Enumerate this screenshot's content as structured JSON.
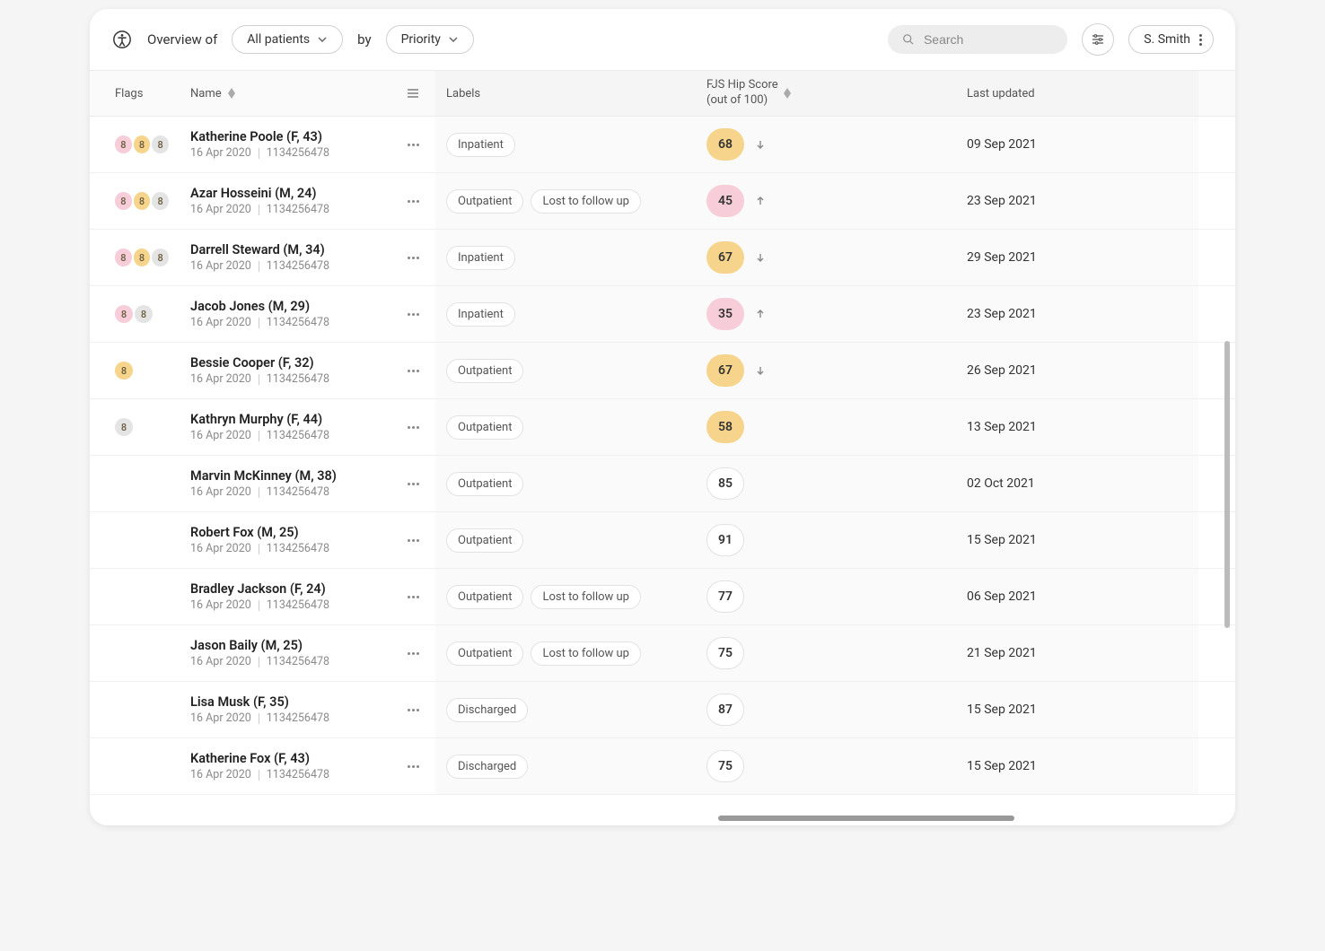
{
  "header": {
    "overview_label": "Overview of",
    "patients_select": "All patients",
    "by_label": "by",
    "priority_select": "Priority",
    "search_placeholder": "Search",
    "user_name": "S. Smith"
  },
  "columns": {
    "flags": "Flags",
    "name": "Name",
    "labels": "Labels",
    "score_line1": "FJS Hip Score",
    "score_line2": "(out of 100)",
    "updated": "Last updated"
  },
  "colors": {
    "flag_pink": "#f7cdd9",
    "flag_yellow": "#f6d48b",
    "flag_grey": "#e4e4e4",
    "score_yellow_bg": "#f6d48b",
    "score_pink_bg": "#f7cdd9",
    "score_neutral_bg": "#ffffff",
    "score_neutral_border": "#e2e2e2",
    "text_dark": "#333333"
  },
  "rows": [
    {
      "name": "Katherine Poole (F, 43)",
      "date": "16 Apr 2020",
      "id": "1134256478",
      "flags": [
        "pink",
        "yellow",
        "grey"
      ],
      "labels": [
        "Inpatient"
      ],
      "score": "68",
      "score_color": "yellow",
      "trend": "down",
      "updated": "09 Sep 2021"
    },
    {
      "name": "Azar Hosseini (M, 24)",
      "date": "16 Apr 2020",
      "id": "1134256478",
      "flags": [
        "pink",
        "yellow",
        "grey"
      ],
      "labels": [
        "Outpatient",
        "Lost to follow up"
      ],
      "score": "45",
      "score_color": "pink",
      "trend": "up",
      "updated": "23 Sep 2021"
    },
    {
      "name": "Darrell Steward (M, 34)",
      "date": "16 Apr 2020",
      "id": "1134256478",
      "flags": [
        "pink",
        "yellow",
        "grey"
      ],
      "labels": [
        "Inpatient"
      ],
      "score": "67",
      "score_color": "yellow",
      "trend": "down",
      "updated": "29 Sep 2021"
    },
    {
      "name": "Jacob Jones (M, 29)",
      "date": "16 Apr 2020",
      "id": "1134256478",
      "flags": [
        "pink",
        "grey"
      ],
      "labels": [
        "Inpatient"
      ],
      "score": "35",
      "score_color": "pink",
      "trend": "up",
      "updated": "23 Sep 2021"
    },
    {
      "name": "Bessie Cooper (F, 32)",
      "date": "16 Apr 2020",
      "id": "1134256478",
      "flags": [
        "yellow"
      ],
      "labels": [
        "Outpatient"
      ],
      "score": "67",
      "score_color": "yellow",
      "trend": "down",
      "updated": "26 Sep 2021"
    },
    {
      "name": "Kathryn Murphy (F, 44)",
      "date": "16 Apr 2020",
      "id": "1134256478",
      "flags": [
        "grey"
      ],
      "labels": [
        "Outpatient"
      ],
      "score": "58",
      "score_color": "yellow",
      "trend": "none",
      "updated": "13 Sep 2021"
    },
    {
      "name": "Marvin McKinney (M, 38)",
      "date": "16 Apr 2020",
      "id": "1134256478",
      "flags": [],
      "labels": [
        "Outpatient"
      ],
      "score": "85",
      "score_color": "neutral",
      "trend": "none",
      "updated": "02 Oct 2021"
    },
    {
      "name": "Robert Fox (M, 25)",
      "date": "16 Apr 2020",
      "id": "1134256478",
      "flags": [],
      "labels": [
        "Outpatient"
      ],
      "score": "91",
      "score_color": "neutral",
      "trend": "none",
      "updated": "15 Sep 2021"
    },
    {
      "name": "Bradley Jackson (F, 24)",
      "date": "16 Apr 2020",
      "id": "1134256478",
      "flags": [],
      "labels": [
        "Outpatient",
        "Lost to follow up"
      ],
      "score": "77",
      "score_color": "neutral",
      "trend": "none",
      "updated": "06 Sep 2021"
    },
    {
      "name": "Jason Baily (M, 25)",
      "date": "16 Apr 2020",
      "id": "1134256478",
      "flags": [],
      "labels": [
        "Outpatient",
        "Lost to follow up"
      ],
      "score": "75",
      "score_color": "neutral",
      "trend": "none",
      "updated": "21 Sep 2021"
    },
    {
      "name": "Lisa Musk (F, 35)",
      "date": "16 Apr 2020",
      "id": "1134256478",
      "flags": [],
      "labels": [
        "Discharged"
      ],
      "score": "87",
      "score_color": "neutral",
      "trend": "none",
      "updated": "15 Sep 2021"
    },
    {
      "name": "Katherine Fox (F, 43)",
      "date": "16 Apr 2020",
      "id": "1134256478",
      "flags": [],
      "labels": [
        "Discharged"
      ],
      "score": "75",
      "score_color": "neutral",
      "trend": "none",
      "updated": "15 Sep 2021"
    }
  ],
  "flag_value": "8"
}
